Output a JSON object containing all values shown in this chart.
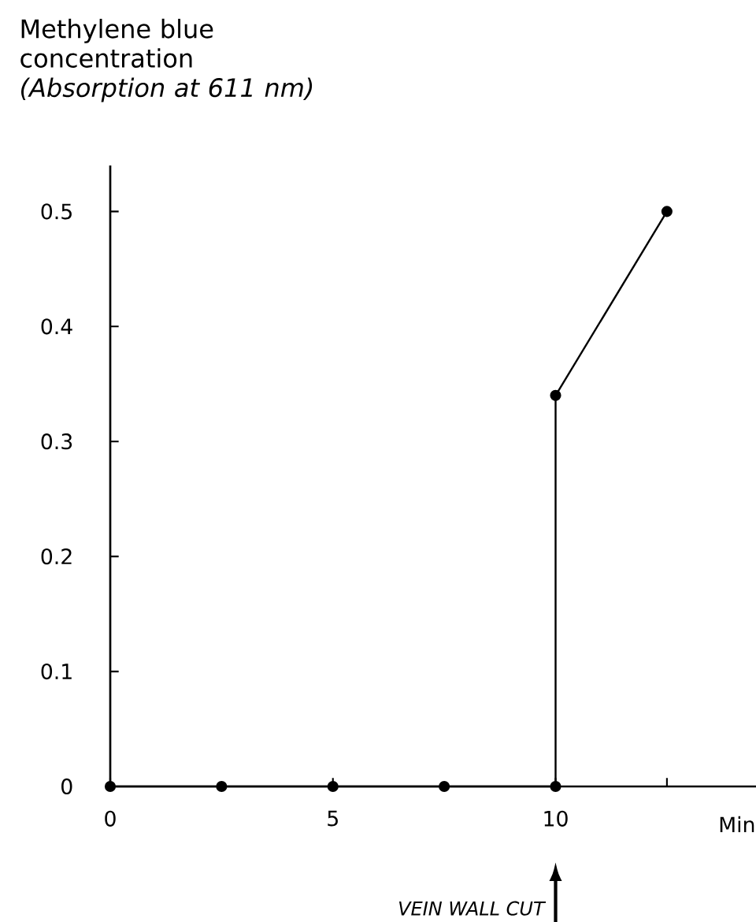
{
  "chart_data": {
    "type": "line",
    "ylabel": "Methylene blue concentration *(Absorption at 611 nm)*",
    "xlabel": "Min",
    "annotations": [
      "VEIN WALL CUT"
    ],
    "series": [
      {
        "color": "#000000",
        "x": [
          0,
          2.5,
          5,
          7.5,
          10,
          10,
          12.5
        ],
        "values": [
          0,
          0,
          0,
          0,
          0,
          0.34,
          0.5
        ]
      }
    ],
    "xlim": [
      0,
      14.5
    ],
    "ylim": [
      0,
      0.54
    ],
    "xticks": [
      0,
      5,
      10,
      {
        "value": 12.5,
        "label": null
      }
    ],
    "yticks": [
      0,
      0.1,
      0.2,
      0.3,
      0.4,
      0.5
    ],
    "marker": "circle",
    "line_style": "solid",
    "grid": false
  }
}
